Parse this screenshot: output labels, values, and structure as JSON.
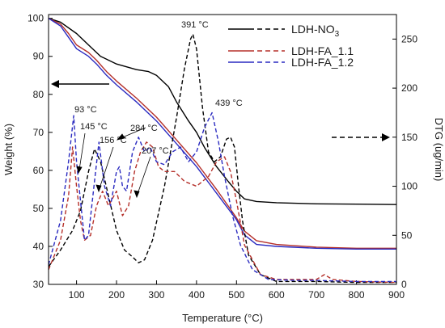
{
  "chart_data": {
    "type": "line",
    "xlabel": "Temperature (°C)",
    "ylabel_left": "Weight (%)",
    "ylabel_right": "DTG (ug/min)",
    "xlim": [
      30,
      900
    ],
    "ylim_left": [
      30,
      101
    ],
    "ylim_right": [
      0,
      275
    ],
    "x_ticks": [
      100,
      200,
      300,
      400,
      500,
      600,
      700,
      800,
      900
    ],
    "y_left_ticks": [
      30,
      40,
      50,
      60,
      70,
      80,
      90,
      100
    ],
    "y_right_ticks": [
      0,
      50,
      100,
      150,
      200,
      250
    ],
    "legend": [
      {
        "label": "LDH-NO",
        "sub": "3",
        "color": "#000000"
      },
      {
        "label": "LDH-FA_1.1",
        "sub": "",
        "color": "#b5302a"
      },
      {
        "label": "LDH-FA_1.2",
        "sub": "",
        "color": "#2a2ac0"
      }
    ],
    "series": [
      {
        "name": "LDH-NO3",
        "axis": "left",
        "style": "solid",
        "color": "#000000",
        "x": [
          30,
          60,
          100,
          130,
          160,
          200,
          250,
          280,
          300,
          330,
          350,
          380,
          400,
          420,
          450,
          480,
          500,
          520,
          550,
          600,
          700,
          800,
          900
        ],
        "y": [
          100,
          99,
          96,
          93,
          90,
          88,
          86.5,
          86,
          85,
          82,
          78,
          73,
          70,
          66,
          61,
          57,
          54.5,
          52.5,
          51.8,
          51.5,
          51.2,
          51.1,
          51
        ]
      },
      {
        "name": "LDH-FA_1.1",
        "axis": "left",
        "style": "solid",
        "color": "#b5302a",
        "x": [
          30,
          60,
          80,
          100,
          130,
          150,
          175,
          200,
          250,
          300,
          350,
          400,
          450,
          500,
          520,
          550,
          600,
          700,
          800,
          900
        ],
        "y": [
          100,
          98.5,
          96,
          93,
          91,
          89,
          86,
          83.5,
          79,
          74,
          68,
          62,
          55,
          47.5,
          44,
          41.5,
          40.5,
          39.8,
          39.5,
          39.5
        ]
      },
      {
        "name": "LDH-FA_1.2",
        "axis": "left",
        "style": "solid",
        "color": "#2a2ac0",
        "x": [
          30,
          60,
          80,
          100,
          130,
          150,
          175,
          200,
          250,
          300,
          350,
          400,
          450,
          500,
          520,
          550,
          600,
          700,
          800,
          900
        ],
        "y": [
          100,
          98,
          95,
          92,
          90,
          88,
          85,
          82.5,
          78,
          73,
          67,
          61,
          54,
          47,
          43,
          40.5,
          40,
          39.5,
          39.3,
          39.3
        ]
      },
      {
        "name": "LDH-NO3 DTG",
        "axis": "right",
        "style": "dashed",
        "color": "#000000",
        "x": [
          30,
          60,
          90,
          110,
          130,
          145,
          160,
          180,
          200,
          220,
          240,
          255,
          270,
          290,
          320,
          350,
          370,
          385,
          391,
          400,
          415,
          430,
          445,
          460,
          475,
          485,
          495,
          505,
          515,
          530,
          560,
          600,
          700,
          800,
          900
        ],
        "y": [
          18,
          35,
          55,
          75,
          115,
          138,
          125,
          90,
          55,
          35,
          28,
          22,
          25,
          45,
          100,
          170,
          220,
          250,
          255,
          240,
          180,
          135,
          125,
          130,
          148,
          150,
          140,
          100,
          65,
          30,
          10,
          3,
          3,
          2,
          2
        ]
      },
      {
        "name": "LDH-FA_1.1 DTG",
        "axis": "right",
        "style": "dashed",
        "color": "#b5302a",
        "x": [
          30,
          60,
          80,
          90,
          100,
          110,
          120,
          135,
          150,
          165,
          180,
          200,
          215,
          230,
          245,
          260,
          275,
          290,
          305,
          320,
          345,
          370,
          400,
          430,
          450,
          470,
          485,
          500,
          520,
          560,
          600,
          700,
          720,
          740,
          800,
          900
        ],
        "y": [
          15,
          45,
          90,
          140,
          100,
          65,
          45,
          50,
          80,
          95,
          80,
          95,
          70,
          80,
          115,
          135,
          145,
          140,
          120,
          115,
          115,
          105,
          100,
          110,
          125,
          130,
          115,
          85,
          40,
          10,
          5,
          5,
          10,
          5,
          3,
          2
        ]
      },
      {
        "name": "LDH-FA_1.2 DTG",
        "axis": "right",
        "style": "dashed",
        "color": "#2a2ac0",
        "x": [
          30,
          60,
          80,
          93,
          100,
          110,
          120,
          130,
          145,
          156,
          170,
          185,
          200,
          207,
          215,
          225,
          240,
          255,
          270,
          284,
          300,
          320,
          340,
          360,
          380,
          400,
          420,
          439,
          455,
          470,
          490,
          510,
          540,
          580,
          650,
          700,
          800,
          900
        ],
        "y": [
          20,
          65,
          125,
          172,
          125,
          85,
          45,
          50,
          105,
          145,
          100,
          80,
          115,
          120,
          100,
          95,
          135,
          150,
          135,
          140,
          125,
          122,
          135,
          140,
          125,
          135,
          160,
          175,
          145,
          110,
          70,
          40,
          15,
          5,
          4,
          4,
          3,
          3
        ]
      }
    ],
    "annotations": [
      {
        "text": "391 °C",
        "x": 391,
        "y": 255,
        "axis": "right"
      },
      {
        "text": "439 °C",
        "x": 439,
        "y": 175,
        "axis": "right"
      },
      {
        "text": "93 °C",
        "x": 93,
        "y": 172,
        "axis": "right"
      },
      {
        "text": "145 °C",
        "x": 145,
        "y": 138,
        "axis": "right"
      },
      {
        "text": "156 °C",
        "x": 156,
        "y": 145,
        "axis": "right"
      },
      {
        "text": "207 °C",
        "x": 207,
        "y": 120,
        "axis": "right"
      },
      {
        "text": "284 °C",
        "x": 284,
        "y": 140,
        "axis": "right"
      }
    ]
  }
}
